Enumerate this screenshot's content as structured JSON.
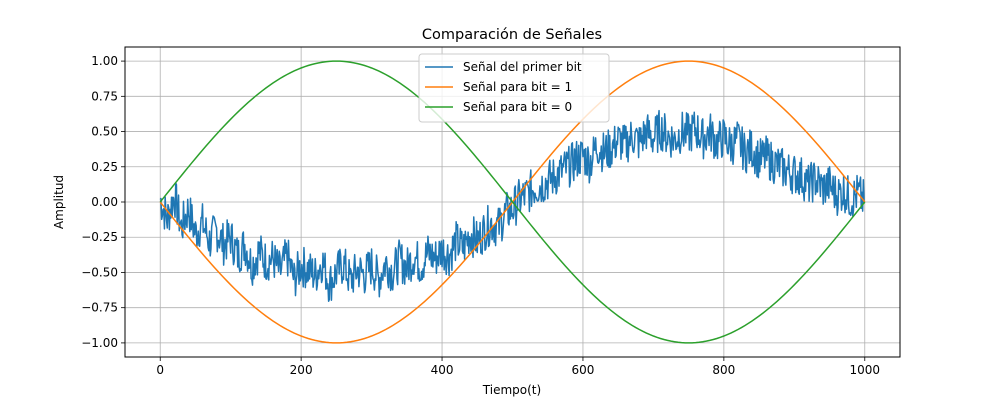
{
  "chart_data": {
    "type": "line",
    "title": "Comparación de Señales",
    "xlabel": "Tiempo(t)",
    "ylabel": "Amplitud",
    "xlim": [
      -50,
      1050
    ],
    "ylim": [
      -1.1,
      1.1
    ],
    "xticks": [
      0,
      200,
      400,
      600,
      800,
      1000
    ],
    "xtick_labels": [
      "0",
      "200",
      "400",
      "600",
      "800",
      "1000"
    ],
    "yticks": [
      -1.0,
      -0.75,
      -0.5,
      -0.25,
      0.0,
      0.25,
      0.5,
      0.75,
      1.0
    ],
    "ytick_labels": [
      "−1.00",
      "−0.75",
      "−0.50",
      "−0.25",
      "0.00",
      "0.25",
      "0.50",
      "0.75",
      "1.00"
    ],
    "grid": true,
    "legend_position": "upper-center",
    "series": [
      {
        "name": "Señal del primer bit",
        "color": "#1f77b4",
        "x": [
          0,
          10,
          20,
          30,
          40,
          50,
          60,
          70,
          80,
          90,
          100,
          110,
          120,
          130,
          140,
          150,
          160,
          170,
          180,
          190,
          200,
          210,
          220,
          230,
          240,
          250,
          260,
          270,
          280,
          290,
          300,
          310,
          320,
          330,
          340,
          350,
          360,
          370,
          380,
          390,
          400,
          410,
          420,
          430,
          440,
          450,
          460,
          470,
          480,
          490,
          500,
          510,
          520,
          530,
          540,
          550,
          560,
          570,
          580,
          590,
          600,
          610,
          620,
          630,
          640,
          650,
          660,
          670,
          680,
          690,
          700,
          710,
          720,
          730,
          740,
          750,
          760,
          770,
          780,
          790,
          800,
          810,
          820,
          830,
          840,
          850,
          860,
          870,
          880,
          890,
          900,
          910,
          920,
          930,
          940,
          950,
          960,
          970,
          980,
          990,
          1000
        ],
        "y": [
          0.02,
          -0.12,
          0.05,
          -0.18,
          -0.05,
          -0.22,
          -0.15,
          -0.28,
          -0.2,
          -0.3,
          -0.25,
          -0.38,
          -0.3,
          -0.45,
          -0.35,
          -0.42,
          -0.4,
          -0.5,
          -0.38,
          -0.55,
          -0.45,
          -0.48,
          -0.52,
          -0.42,
          -0.58,
          -0.5,
          -0.44,
          -0.56,
          -0.48,
          -0.52,
          -0.45,
          -0.55,
          -0.43,
          -0.5,
          -0.41,
          -0.47,
          -0.38,
          -0.45,
          -0.36,
          -0.4,
          -0.34,
          -0.38,
          -0.28,
          -0.33,
          -0.22,
          -0.28,
          -0.2,
          -0.15,
          -0.18,
          -0.08,
          -0.05,
          0.02,
          0.05,
          0.1,
          0.12,
          0.15,
          0.18,
          0.22,
          0.25,
          0.3,
          0.33,
          0.28,
          0.4,
          0.35,
          0.38,
          0.44,
          0.4,
          0.47,
          0.42,
          0.5,
          0.45,
          0.52,
          0.47,
          0.44,
          0.5,
          0.48,
          0.52,
          0.45,
          0.5,
          0.42,
          0.46,
          0.4,
          0.44,
          0.35,
          0.38,
          0.3,
          0.32,
          0.28,
          0.25,
          0.22,
          0.2,
          0.18,
          0.12,
          0.16,
          0.1,
          0.12,
          0.05,
          0.08,
          0.02,
          0.06,
          0.0
        ]
      },
      {
        "name": "Señal para bit = 1",
        "color": "#ff7f0e",
        "function": "-sin(2*pi*t/1000)"
      },
      {
        "name": "Señal para bit = 0",
        "color": "#2ca02c",
        "function": "sin(2*pi*t/1000)"
      }
    ]
  }
}
